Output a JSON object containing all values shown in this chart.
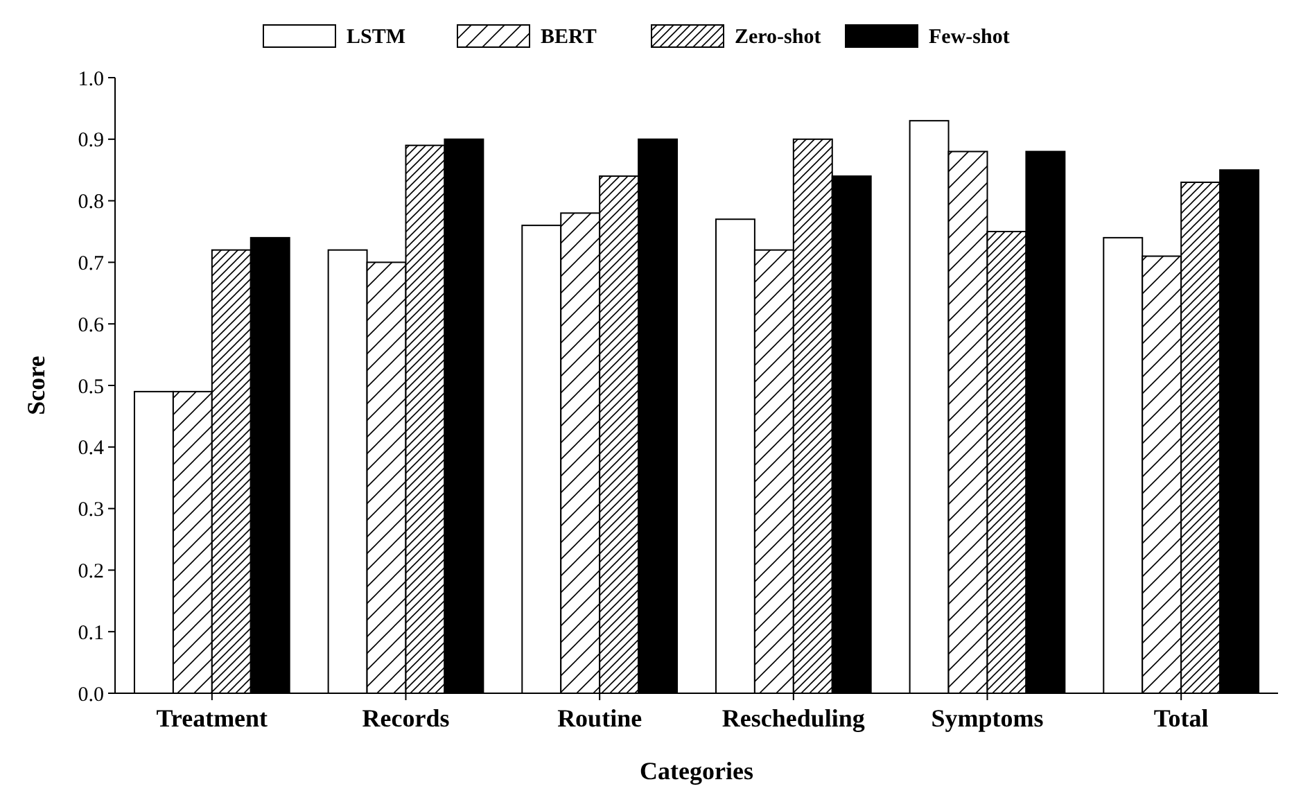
{
  "chart_data": {
    "type": "bar",
    "xlabel": "Categories",
    "ylabel": "Score",
    "categories": [
      "Treatment",
      "Records",
      "Routine",
      "Rescheduling",
      "Symptoms",
      "Total"
    ],
    "series": [
      {
        "name": "LSTM",
        "color": "#ffffff",
        "values": [
          0.49,
          0.72,
          0.76,
          0.77,
          0.93,
          0.74
        ]
      },
      {
        "name": "BERT",
        "color": "#000000",
        "values": [
          0.49,
          0.7,
          0.78,
          0.72,
          0.88,
          0.71
        ]
      },
      {
        "name": "Zero-shot",
        "color": "#000000",
        "values": [
          0.72,
          0.89,
          0.84,
          0.9,
          0.75,
          0.83
        ]
      },
      {
        "name": "Few-shot",
        "color": "#000000",
        "values": [
          0.74,
          0.9,
          0.9,
          0.84,
          0.88,
          0.85
        ]
      }
    ],
    "ylim": [
      0,
      1
    ],
    "yticks": [
      {
        "value": 0,
        "label": "0.0"
      },
      0.1,
      0.2,
      0.3,
      0.4,
      0.5,
      0.6,
      0.7,
      0.8,
      0.9,
      {
        "value": 1,
        "label": "1.0"
      }
    ],
    "grid": false,
    "legend": "top"
  }
}
